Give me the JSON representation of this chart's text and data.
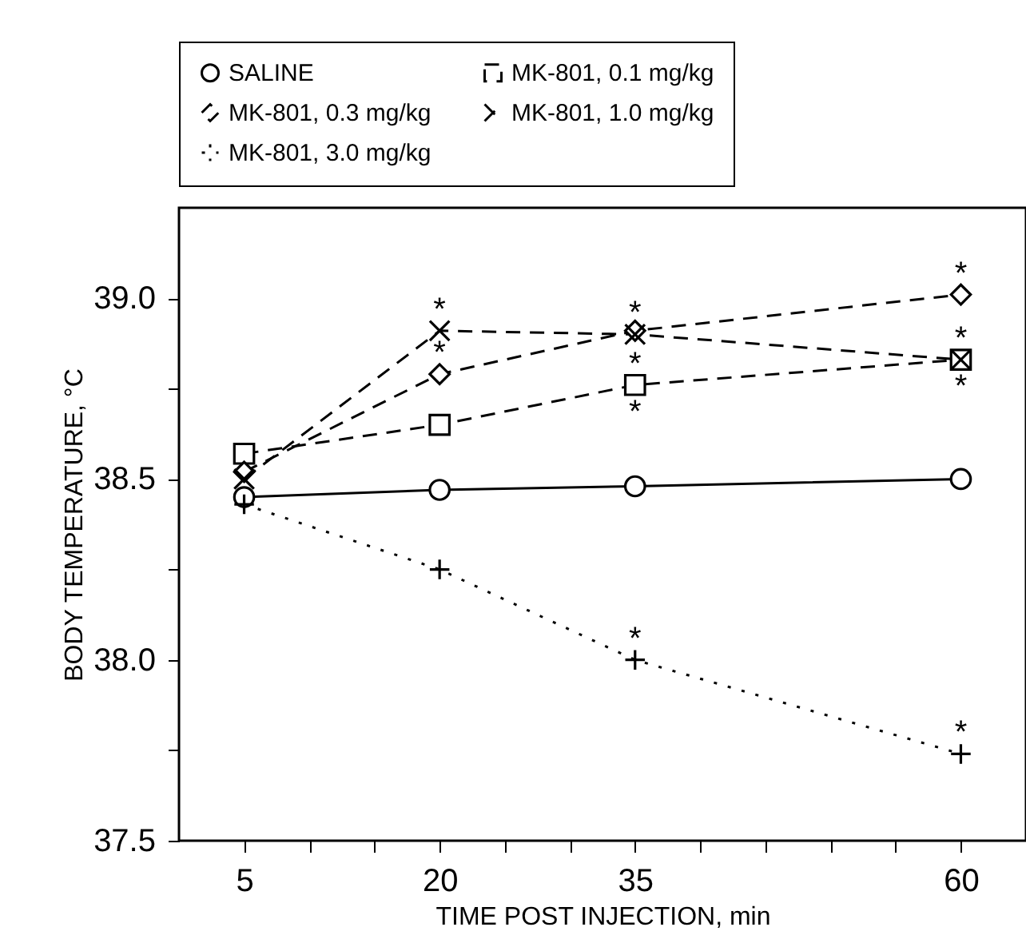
{
  "chart_data": {
    "type": "line",
    "xlabel": "TIME POST INJECTION, min",
    "ylabel": "BODY TEMPERATURE, °C",
    "x": [
      5,
      20,
      35,
      60
    ],
    "series": [
      {
        "name": "SALINE",
        "color": "#000000",
        "marker": "circle",
        "line_style": "solid",
        "values": [
          38.45,
          38.47,
          38.48,
          38.5
        ]
      },
      {
        "name": "MK-801, 0.1 mg/kg",
        "color": "#000000",
        "marker": "square",
        "line_style": "dashed",
        "values": [
          38.57,
          38.65,
          38.76,
          38.83
        ]
      },
      {
        "name": "MK-801, 0.3 mg/kg",
        "color": "#000000",
        "marker": "diamond",
        "line_style": "dashed",
        "values": [
          38.52,
          38.79,
          38.91,
          39.01
        ]
      },
      {
        "name": "MK-801, 1.0 mg/kg",
        "color": "#000000",
        "marker": "cross",
        "line_style": "dashed",
        "values": [
          38.5,
          38.91,
          38.9,
          38.83
        ]
      },
      {
        "name": "MK-801, 3.0 mg/kg",
        "color": "#000000",
        "marker": "plus",
        "line_style": "dotted",
        "values": [
          38.43,
          38.25,
          38.0,
          37.74
        ]
      }
    ],
    "xlim": [
      0,
      65
    ],
    "xticks": [
      5,
      {
        "value": 10,
        "label": null
      },
      {
        "value": 15,
        "label": null
      },
      20,
      {
        "value": 25,
        "label": null
      },
      {
        "value": 30,
        "label": null
      },
      35,
      {
        "value": 40,
        "label": null
      },
      {
        "value": 45,
        "label": null
      },
      {
        "value": 50,
        "label": null
      },
      {
        "value": 55,
        "label": null
      },
      60
    ],
    "ylim": [
      37.5,
      39.25
    ],
    "yticks": [
      {
        "value": 37.5,
        "label": "37.5"
      },
      {
        "value": 37.75,
        "label": null
      },
      {
        "value": 38,
        "label": "38.0"
      },
      {
        "value": 38.25,
        "label": null
      },
      {
        "value": 38.5,
        "label": "38.5"
      },
      {
        "value": 38.75,
        "label": null
      },
      {
        "value": 39,
        "label": "39.0"
      }
    ],
    "annotations": [
      {
        "text": "*",
        "x": 20,
        "y": 38.91
      },
      {
        "text": "*",
        "x": 20,
        "y": 38.79
      },
      {
        "text": "*",
        "x": 35,
        "y": 38.9
      },
      {
        "text": "*",
        "x": 35,
        "y": 38.76
      },
      {
        "text": "*",
        "x": 35,
        "y": 38.76
      },
      {
        "text": "*",
        "x": 60,
        "y": 39.01
      },
      {
        "text": "*",
        "x": 60,
        "y": 38.83
      },
      {
        "text": "*",
        "x": 60,
        "y": 38.83
      },
      {
        "text": "*",
        "x": 35,
        "y": 38.0
      },
      {
        "text": "*",
        "x": 60,
        "y": 37.74
      }
    ],
    "grid": false,
    "legend": "top"
  }
}
